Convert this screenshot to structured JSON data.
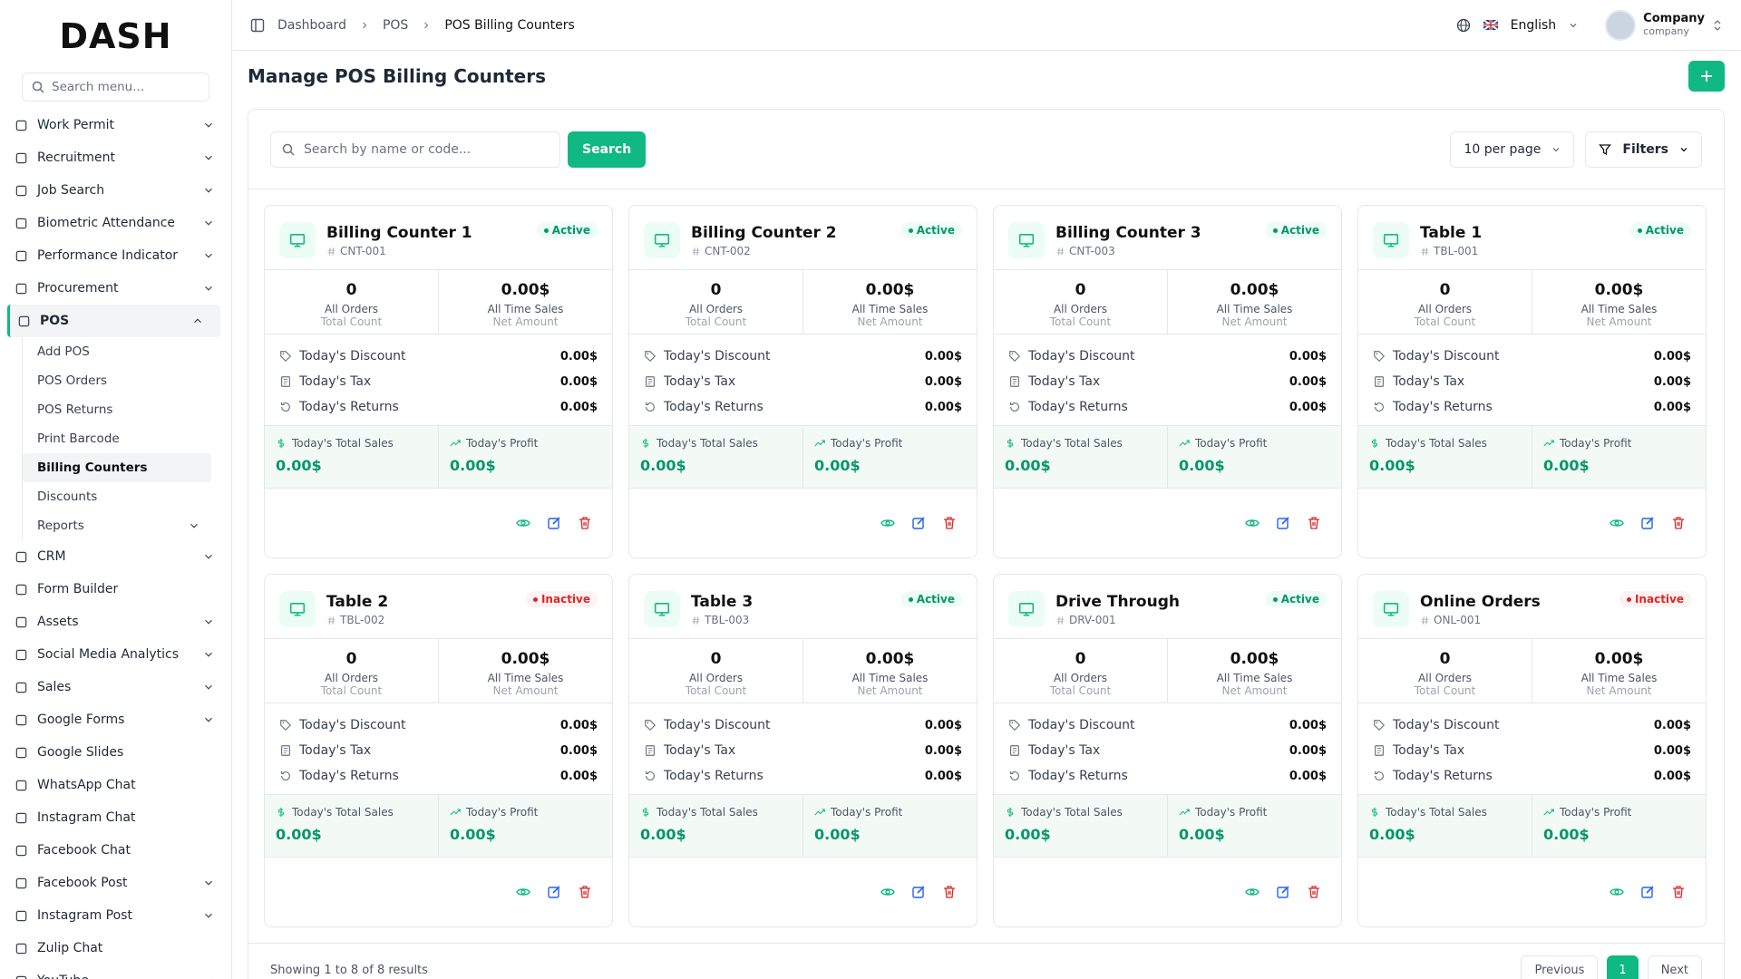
{
  "brand": "DASH",
  "sidebar": {
    "search_placeholder": "Search menu...",
    "items": [
      {
        "label": "Work Permit",
        "expandable": true
      },
      {
        "label": "Recruitment",
        "expandable": true
      },
      {
        "label": "Job Search",
        "expandable": true
      },
      {
        "label": "Biometric Attendance",
        "expandable": true
      },
      {
        "label": "Performance Indicator",
        "expandable": true
      },
      {
        "label": "Procurement",
        "expandable": true
      },
      {
        "label": "POS",
        "expandable": true,
        "open": true,
        "children": [
          {
            "label": "Add POS"
          },
          {
            "label": "POS Orders"
          },
          {
            "label": "POS Returns"
          },
          {
            "label": "Print Barcode"
          },
          {
            "label": "Billing Counters",
            "active": true
          },
          {
            "label": "Discounts"
          },
          {
            "label": "Reports",
            "expandable": true
          }
        ]
      },
      {
        "label": "CRM",
        "expandable": true
      },
      {
        "label": "Form Builder",
        "expandable": false
      },
      {
        "label": "Assets",
        "expandable": true
      },
      {
        "label": "Social Media Analytics",
        "expandable": true
      },
      {
        "label": "Sales",
        "expandable": true
      },
      {
        "label": "Google Forms",
        "expandable": true
      },
      {
        "label": "Google Slides",
        "expandable": false
      },
      {
        "label": "WhatsApp Chat",
        "expandable": false
      },
      {
        "label": "Instagram Chat",
        "expandable": false
      },
      {
        "label": "Facebook Chat",
        "expandable": false
      },
      {
        "label": "Facebook Post",
        "expandable": true
      },
      {
        "label": "Instagram Post",
        "expandable": true
      },
      {
        "label": "Zulip Chat",
        "expandable": false
      },
      {
        "label": "YouTube",
        "expandable": true
      }
    ]
  },
  "header": {
    "breadcrumb": [
      "Dashboard",
      "POS",
      "POS Billing Counters"
    ],
    "language": "English",
    "user": {
      "name": "Company",
      "role": "company"
    }
  },
  "page": {
    "title": "Manage POS Billing Counters",
    "search_placeholder": "Search by name or code...",
    "search_button": "Search",
    "per_page": "10 per page",
    "filters": "Filters"
  },
  "card_labels": {
    "orders": "All Orders",
    "orders_sub": "Total Count",
    "sales": "All Time Sales",
    "sales_sub": "Net Amount",
    "discount": "Today's Discount",
    "tax": "Today's Tax",
    "returns": "Today's Returns",
    "total_sales": "Today's Total Sales",
    "profit": "Today's Profit"
  },
  "counters": [
    {
      "name": "Billing Counter 1",
      "code": "CNT-001",
      "status": "Active",
      "orders": "0",
      "sales": "0.00$",
      "discount": "0.00$",
      "tax": "0.00$",
      "returns": "0.00$",
      "total_sales": "0.00$",
      "profit": "0.00$"
    },
    {
      "name": "Billing Counter 2",
      "code": "CNT-002",
      "status": "Active",
      "orders": "0",
      "sales": "0.00$",
      "discount": "0.00$",
      "tax": "0.00$",
      "returns": "0.00$",
      "total_sales": "0.00$",
      "profit": "0.00$"
    },
    {
      "name": "Billing Counter 3",
      "code": "CNT-003",
      "status": "Active",
      "orders": "0",
      "sales": "0.00$",
      "discount": "0.00$",
      "tax": "0.00$",
      "returns": "0.00$",
      "total_sales": "0.00$",
      "profit": "0.00$"
    },
    {
      "name": "Table 1",
      "code": "TBL-001",
      "status": "Active",
      "orders": "0",
      "sales": "0.00$",
      "discount": "0.00$",
      "tax": "0.00$",
      "returns": "0.00$",
      "total_sales": "0.00$",
      "profit": "0.00$"
    },
    {
      "name": "Table 2",
      "code": "TBL-002",
      "status": "Inactive",
      "orders": "0",
      "sales": "0.00$",
      "discount": "0.00$",
      "tax": "0.00$",
      "returns": "0.00$",
      "total_sales": "0.00$",
      "profit": "0.00$"
    },
    {
      "name": "Table 3",
      "code": "TBL-003",
      "status": "Active",
      "orders": "0",
      "sales": "0.00$",
      "discount": "0.00$",
      "tax": "0.00$",
      "returns": "0.00$",
      "total_sales": "0.00$",
      "profit": "0.00$"
    },
    {
      "name": "Drive Through",
      "code": "DRV-001",
      "status": "Active",
      "orders": "0",
      "sales": "0.00$",
      "discount": "0.00$",
      "tax": "0.00$",
      "returns": "0.00$",
      "total_sales": "0.00$",
      "profit": "0.00$"
    },
    {
      "name": "Online Orders",
      "code": "ONL-001",
      "status": "Inactive",
      "orders": "0",
      "sales": "0.00$",
      "discount": "0.00$",
      "tax": "0.00$",
      "returns": "0.00$",
      "total_sales": "0.00$",
      "profit": "0.00$"
    }
  ],
  "footer": {
    "summary": "Showing 1 to 8 of 8 results",
    "previous": "Previous",
    "current": "1",
    "next": "Next"
  }
}
